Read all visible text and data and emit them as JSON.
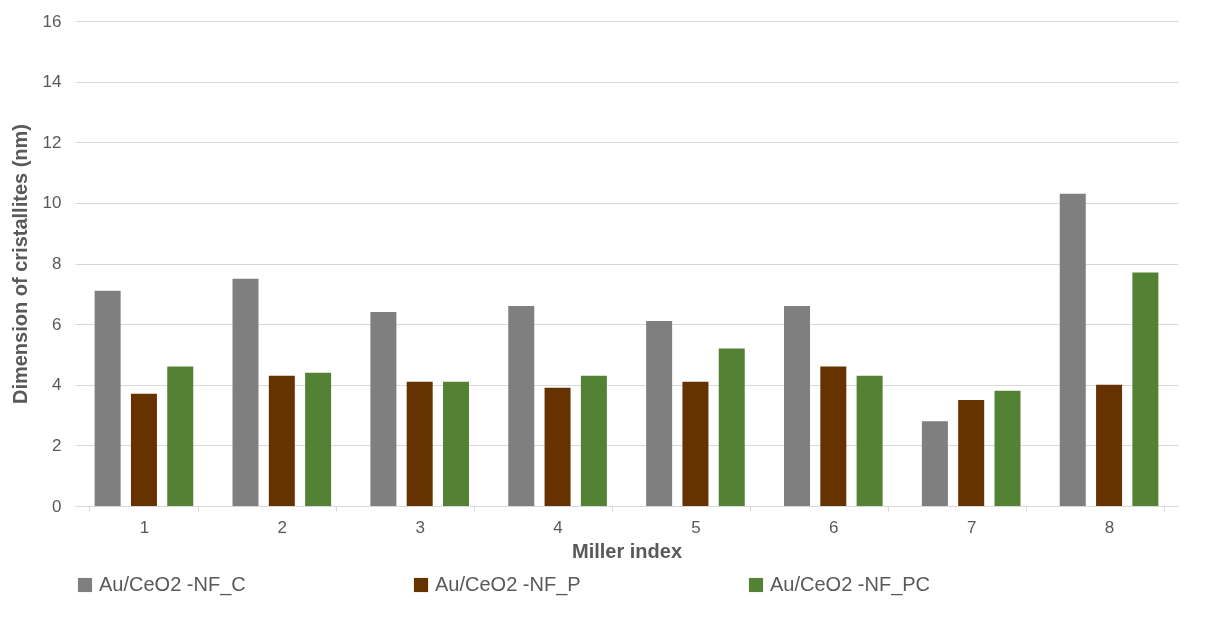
{
  "chart_data": {
    "type": "bar",
    "xlabel": "Miller index",
    "ylabel": "Dimension of cristallites (nm)",
    "categories": [
      "1",
      "2",
      "3",
      "4",
      "5",
      "6",
      "7",
      "8"
    ],
    "series": [
      {
        "name": "Au/CeO2 -NF_C",
        "color": "#7f7f7f",
        "values": [
          7.1,
          7.5,
          6.4,
          6.6,
          6.1,
          6.6,
          2.8,
          10.3
        ]
      },
      {
        "name": "Au/CeO2 -NF_P",
        "color": "#663300",
        "values": [
          3.7,
          4.3,
          4.1,
          3.9,
          4.1,
          4.6,
          3.5,
          4.0
        ]
      },
      {
        "name": "Au/CeO2 -NF_PC",
        "color": "#548235",
        "values": [
          4.6,
          4.4,
          4.1,
          4.3,
          5.2,
          4.3,
          3.8,
          7.7
        ]
      }
    ],
    "ylim": [
      0,
      16
    ],
    "yticks": [
      0,
      2,
      4,
      6,
      8,
      10,
      12,
      14,
      16
    ],
    "grid": "y",
    "legend": "bottom"
  }
}
